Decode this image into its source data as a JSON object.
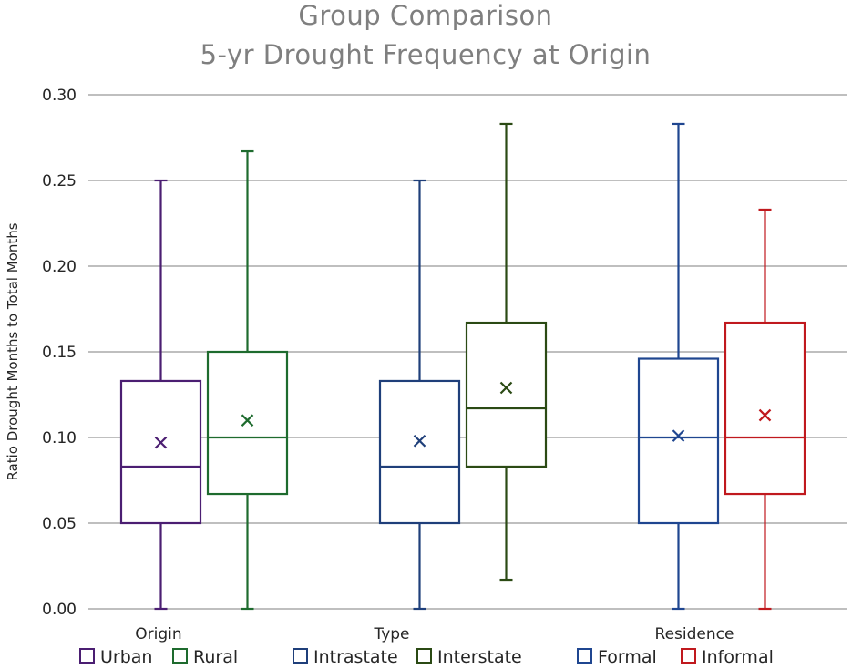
{
  "chart_data": {
    "type": "box",
    "title": [
      "Group Comparison",
      "5-yr Drought Frequency at Origin"
    ],
    "ylabel": "Ratio Drought Months to Total Months",
    "ylim": [
      0,
      0.3
    ],
    "yticks": [
      "0.00",
      "0.05",
      "0.10",
      "0.15",
      "0.20",
      "0.25",
      "0.30"
    ],
    "grid": true,
    "legend_position": "bottom",
    "groups": [
      {
        "label": "Origin",
        "boxes": [
          {
            "name": "Urban",
            "color": "#4b1e72",
            "min": 0.0,
            "q1": 0.05,
            "median": 0.083,
            "q3": 0.133,
            "max": 0.25,
            "mean": 0.097
          },
          {
            "name": "Rural",
            "color": "#1e6b2e",
            "min": 0.0,
            "q1": 0.067,
            "median": 0.1,
            "q3": 0.15,
            "max": 0.267,
            "mean": 0.11
          }
        ]
      },
      {
        "label": "Type",
        "boxes": [
          {
            "name": "Intrastate",
            "color": "#1f3f7a",
            "min": 0.0,
            "q1": 0.05,
            "median": 0.083,
            "q3": 0.133,
            "max": 0.25,
            "mean": 0.098
          },
          {
            "name": "Interstate",
            "color": "#2b4a14",
            "min": 0.017,
            "q1": 0.083,
            "median": 0.117,
            "q3": 0.167,
            "max": 0.283,
            "mean": 0.129
          }
        ]
      },
      {
        "label": "Residence",
        "boxes": [
          {
            "name": "Formal",
            "color": "#1f4690",
            "min": 0.0,
            "q1": 0.05,
            "median": 0.1,
            "q3": 0.146,
            "max": 0.283,
            "mean": 0.101
          },
          {
            "name": "Informal",
            "color": "#c0191e",
            "min": 0.0,
            "q1": 0.067,
            "median": 0.1,
            "q3": 0.167,
            "max": 0.233,
            "mean": 0.113
          }
        ]
      }
    ]
  }
}
